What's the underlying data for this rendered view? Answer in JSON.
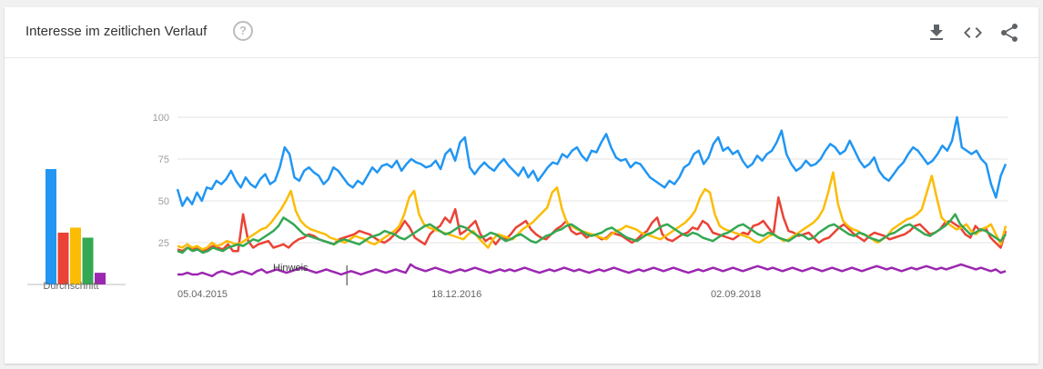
{
  "header": {
    "title": "Interesse im zeitlichen Verlauf",
    "help_icon": "help-circle-icon",
    "actions": [
      {
        "name": "download-icon"
      },
      {
        "name": "embed-code-icon"
      },
      {
        "name": "share-icon"
      }
    ]
  },
  "average": {
    "label": "Durchschnitt"
  },
  "annotation": {
    "label": "Hinweis",
    "date": "2016-04-17"
  },
  "chart_data": {
    "type": "line",
    "x_range": [
      "2015-04-05",
      "2020-04-26"
    ],
    "x_ticks": [
      "05.04.2015",
      "18.12.2016",
      "02.09.2018"
    ],
    "y_ticks": [
      25,
      50,
      75,
      100
    ],
    "ylim": [
      0,
      100
    ],
    "grid": true,
    "series": [
      {
        "color": "#2196f3",
        "average": 69,
        "values": [
          57,
          47,
          52,
          48,
          55,
          50,
          58,
          57,
          62,
          60,
          63,
          68,
          62,
          58,
          64,
          60,
          58,
          63,
          66,
          60,
          62,
          70,
          82,
          78,
          64,
          62,
          68,
          70,
          67,
          65,
          60,
          63,
          70,
          68,
          64,
          60,
          58,
          62,
          60,
          65,
          70,
          67,
          71,
          72,
          70,
          74,
          68,
          72,
          75,
          73,
          72,
          70,
          71,
          74,
          69,
          78,
          81,
          74,
          85,
          88,
          70,
          66,
          70,
          73,
          70,
          68,
          72,
          75,
          71,
          68,
          65,
          70,
          64,
          68,
          62,
          66,
          70,
          73,
          72,
          78,
          76,
          80,
          82,
          77,
          74,
          80,
          79,
          85,
          90,
          82,
          76,
          74,
          75,
          70,
          73,
          72,
          68,
          64,
          62,
          60,
          58,
          62,
          60,
          64,
          70,
          72,
          78,
          80,
          72,
          76,
          84,
          88,
          80,
          82,
          78,
          80,
          74,
          70,
          72,
          77,
          74,
          78,
          80,
          85,
          92,
          78,
          72,
          68,
          70,
          74,
          71,
          72,
          75,
          80,
          84,
          82,
          78,
          80,
          86,
          80,
          74,
          70,
          72,
          76,
          68,
          64,
          62,
          66,
          70,
          73,
          78,
          82,
          80,
          76,
          72,
          74,
          78,
          83,
          80,
          86,
          100,
          82,
          80,
          78,
          80,
          75,
          72,
          60,
          52,
          65,
          72
        ]
      },
      {
        "color": "#ea4335",
        "average": 31,
        "values": [
          21,
          20,
          22,
          21,
          22,
          20,
          21,
          23,
          22,
          21,
          24,
          20,
          20,
          42,
          26,
          22,
          24,
          25,
          26,
          22,
          23,
          24,
          22,
          25,
          27,
          28,
          30,
          29,
          27,
          26,
          25,
          24,
          27,
          28,
          29,
          30,
          32,
          31,
          30,
          28,
          26,
          25,
          27,
          30,
          33,
          38,
          34,
          28,
          26,
          24,
          30,
          33,
          35,
          40,
          37,
          45,
          30,
          32,
          35,
          38,
          30,
          26,
          28,
          24,
          28,
          27,
          30,
          34,
          36,
          38,
          33,
          30,
          28,
          27,
          30,
          33,
          35,
          38,
          32,
          30,
          31,
          28,
          30,
          29,
          27,
          28,
          31,
          30,
          29,
          27,
          25,
          27,
          30,
          32,
          37,
          40,
          30,
          27,
          26,
          28,
          30,
          31,
          34,
          33,
          38,
          36,
          31,
          30,
          29,
          28,
          27,
          29,
          31,
          30,
          35,
          36,
          38,
          34,
          30,
          52,
          40,
          32,
          31,
          29,
          30,
          31,
          28,
          25,
          27,
          28,
          31,
          34,
          36,
          33,
          30,
          28,
          26,
          29,
          31,
          30,
          29,
          27,
          28,
          29,
          30,
          32,
          35,
          36,
          33,
          30,
          31,
          33,
          37,
          38,
          36,
          34,
          30,
          28,
          35,
          32,
          34,
          28,
          25,
          22,
          32
        ]
      },
      {
        "color": "#fbbc04",
        "average": 34,
        "values": [
          23,
          22,
          24,
          22,
          23,
          21,
          22,
          25,
          23,
          24,
          26,
          25,
          24,
          25,
          27,
          29,
          31,
          33,
          34,
          37,
          41,
          45,
          50,
          56,
          44,
          38,
          35,
          33,
          32,
          31,
          30,
          28,
          27,
          26,
          25,
          27,
          29,
          28,
          27,
          25,
          24,
          26,
          28,
          30,
          32,
          35,
          42,
          52,
          56,
          42,
          36,
          34,
          33,
          32,
          31,
          30,
          29,
          28,
          27,
          30,
          32,
          28,
          25,
          22,
          27,
          30,
          29,
          28,
          27,
          30,
          33,
          35,
          37,
          40,
          43,
          46,
          55,
          58,
          45,
          37,
          35,
          33,
          32,
          31,
          30,
          29,
          28,
          27,
          30,
          32,
          33,
          35,
          34,
          33,
          31,
          30,
          29,
          28,
          27,
          29,
          31,
          33,
          35,
          37,
          40,
          44,
          52,
          57,
          55,
          42,
          35,
          33,
          32,
          31,
          30,
          29,
          28,
          26,
          25,
          27,
          29,
          30,
          28,
          26,
          27,
          29,
          31,
          33,
          35,
          37,
          40,
          45,
          55,
          67,
          48,
          38,
          35,
          33,
          32,
          30,
          29,
          27,
          25,
          27,
          29,
          33,
          35,
          37,
          39,
          40,
          42,
          45,
          55,
          65,
          52,
          40,
          37,
          35,
          33,
          34,
          36,
          32,
          30,
          33,
          34,
          36,
          30,
          24,
          35
        ]
      },
      {
        "color": "#34a853",
        "average": 28,
        "values": [
          20,
          19,
          22,
          20,
          21,
          19,
          20,
          22,
          21,
          20,
          22,
          23,
          24,
          23,
          25,
          27,
          26,
          28,
          30,
          32,
          35,
          40,
          38,
          36,
          33,
          30,
          29,
          28,
          27,
          26,
          25,
          24,
          26,
          27,
          26,
          25,
          24,
          26,
          28,
          29,
          30,
          32,
          31,
          30,
          28,
          27,
          29,
          31,
          33,
          35,
          36,
          34,
          32,
          30,
          31,
          33,
          35,
          34,
          32,
          30,
          28,
          29,
          31,
          30,
          28,
          26,
          27,
          29,
          30,
          28,
          26,
          25,
          27,
          29,
          30,
          32,
          33,
          35,
          36,
          34,
          32,
          30,
          29,
          30,
          31,
          33,
          34,
          32,
          30,
          28,
          27,
          26,
          28,
          30,
          31,
          33,
          35,
          36,
          34,
          32,
          30,
          29,
          31,
          30,
          28,
          27,
          26,
          28,
          30,
          31,
          33,
          35,
          36,
          34,
          32,
          30,
          29,
          31,
          30,
          28,
          27,
          26,
          28,
          30,
          29,
          27,
          28,
          31,
          33,
          35,
          36,
          34,
          32,
          30,
          29,
          31,
          30,
          28,
          27,
          26,
          28,
          30,
          31,
          33,
          35,
          36,
          34,
          32,
          30,
          29,
          31,
          33,
          35,
          38,
          42,
          36,
          33,
          30,
          31,
          33,
          32,
          30,
          28,
          26,
          30
        ]
      },
      {
        "color": "#9c27b0",
        "average": 7,
        "values": [
          6,
          6,
          7,
          6,
          6,
          7,
          6,
          5,
          7,
          8,
          7,
          6,
          7,
          8,
          7,
          6,
          8,
          9,
          7,
          8,
          9,
          8,
          7,
          8,
          9,
          10,
          9,
          8,
          7,
          8,
          9,
          8,
          7,
          6,
          7,
          8,
          7,
          6,
          7,
          8,
          9,
          8,
          7,
          8,
          9,
          8,
          7,
          12,
          10,
          9,
          8,
          9,
          10,
          9,
          8,
          7,
          8,
          9,
          8,
          9,
          10,
          9,
          8,
          7,
          8,
          9,
          8,
          9,
          8,
          9,
          10,
          9,
          8,
          7,
          8,
          9,
          8,
          9,
          10,
          9,
          8,
          9,
          8,
          7,
          8,
          9,
          8,
          9,
          10,
          9,
          8,
          7,
          8,
          9,
          8,
          9,
          10,
          9,
          8,
          9,
          10,
          9,
          8,
          7,
          8,
          9,
          8,
          9,
          10,
          9,
          8,
          9,
          10,
          9,
          8,
          9,
          10,
          11,
          10,
          9,
          10,
          9,
          8,
          9,
          10,
          9,
          8,
          9,
          10,
          9,
          8,
          9,
          10,
          9,
          8,
          9,
          10,
          9,
          8,
          9,
          10,
          11,
          10,
          9,
          10,
          9,
          8,
          9,
          10,
          9,
          10,
          11,
          10,
          9,
          10,
          9,
          10,
          11,
          12,
          11,
          10,
          9,
          10,
          9,
          8,
          9,
          7,
          8
        ]
      }
    ]
  }
}
